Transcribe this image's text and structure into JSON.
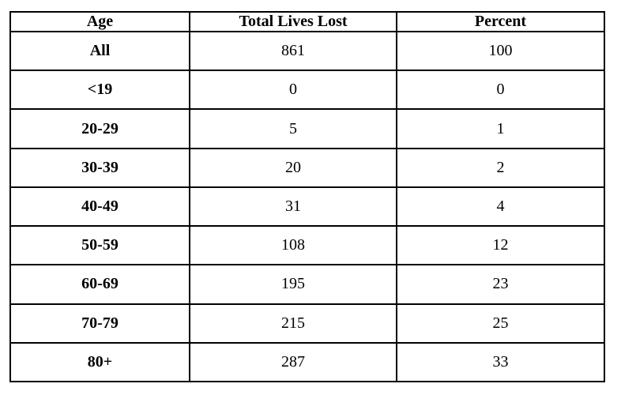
{
  "table": {
    "columns": [
      {
        "key": "age",
        "label": "Age"
      },
      {
        "key": "total",
        "label": "Total Lives Lost"
      },
      {
        "key": "percent",
        "label": "Percent"
      }
    ],
    "rows": [
      {
        "age": "All",
        "total": "861",
        "percent": "100"
      },
      {
        "age": "<19",
        "total": "0",
        "percent": "0"
      },
      {
        "age": "20-29",
        "total": "5",
        "percent": "1"
      },
      {
        "age": "30-39",
        "total": "20",
        "percent": "2"
      },
      {
        "age": "40-49",
        "total": "31",
        "percent": "4"
      },
      {
        "age": "50-59",
        "total": "108",
        "percent": "12"
      },
      {
        "age": "60-69",
        "total": "195",
        "percent": "23"
      },
      {
        "age": "70-79",
        "total": "215",
        "percent": "25"
      },
      {
        "age": "80+",
        "total": "287",
        "percent": "33"
      }
    ],
    "colors": {
      "border": "#000000",
      "background": "#ffffff",
      "text": "#000000"
    }
  },
  "chart_data": {
    "type": "table",
    "title": "",
    "columns": [
      "Age",
      "Total Lives Lost",
      "Percent"
    ],
    "categories": [
      "All",
      "<19",
      "20-29",
      "30-39",
      "40-49",
      "50-59",
      "60-69",
      "70-79",
      "80+"
    ],
    "series": [
      {
        "name": "Total Lives Lost",
        "values": [
          861,
          0,
          5,
          20,
          31,
          108,
          195,
          215,
          287
        ]
      },
      {
        "name": "Percent",
        "values": [
          100,
          0,
          1,
          2,
          4,
          12,
          23,
          25,
          33
        ]
      }
    ]
  }
}
